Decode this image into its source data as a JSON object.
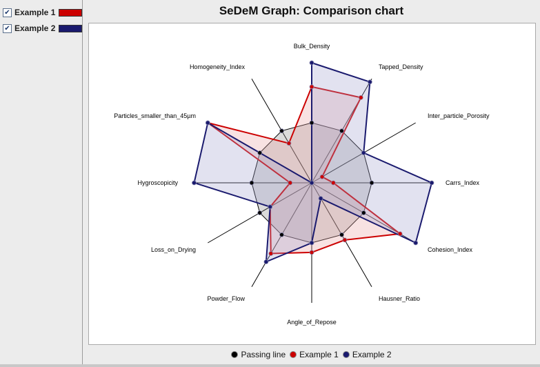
{
  "sidebar": {
    "items": [
      {
        "label": "Example 1",
        "checked": true,
        "check_glyph": "✔",
        "color": "#cc0000"
      },
      {
        "label": "Example 2",
        "checked": true,
        "check_glyph": "✔",
        "color": "#1a1a6e"
      }
    ]
  },
  "chart_data": {
    "type": "radar",
    "title": "SeDeM Graph: Comparison chart",
    "axes": [
      "Bulk_Density",
      "Tapped_Density",
      "Inter_particle_Porosity",
      "Carrs_Index",
      "Cohesion_Index",
      "Hausner_Ratio",
      "Angle_of_Repose",
      "Powder_Flow",
      "Loss_on_Drying",
      "Hygroscopicity",
      "Particles_smaller_than_45µm",
      "Homogeneity_Index"
    ],
    "range": [
      0,
      10
    ],
    "grid": false,
    "legend_position": "bottom",
    "series": [
      {
        "name": "Passing line",
        "color": "#000000",
        "fill": "#888888",
        "values": [
          5,
          5,
          5,
          5,
          5,
          5,
          5,
          5,
          5,
          5,
          5,
          5
        ]
      },
      {
        "name": "Example 1",
        "color": "#cc0000",
        "fill": "#e8a0a0",
        "values": [
          8.0,
          8.2,
          1.0,
          1.8,
          8.5,
          5.5,
          5.8,
          6.8,
          4.0,
          1.8,
          10.0,
          3.8
        ]
      },
      {
        "name": "Example 2",
        "color": "#1a1a6e",
        "fill": "#a0a0cc",
        "values": [
          10.0,
          9.7,
          5.0,
          10.0,
          10.0,
          1.5,
          5.0,
          7.6,
          4.0,
          9.8,
          10.0,
          0.0
        ]
      }
    ]
  }
}
